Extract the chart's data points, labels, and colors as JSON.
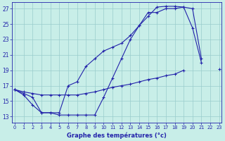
{
  "bg_color": "#c8eee8",
  "grid_color": "#99cccc",
  "line_color": "#2222aa",
  "xlabel": "Graphe des températures (°c)",
  "hours": [
    0,
    1,
    2,
    3,
    4,
    5,
    6,
    7,
    8,
    9,
    10,
    11,
    12,
    13,
    14,
    15,
    16,
    17,
    18,
    19,
    20,
    21,
    22,
    23
  ],
  "curve_A": [
    16.5,
    15.8,
    14.5,
    13.5,
    13.5,
    13.2,
    13.2,
    13.2,
    13.2,
    13.2,
    15.5,
    18.0,
    20.5,
    23.0,
    24.8,
    26.0,
    27.2,
    27.3,
    27.3,
    27.2,
    24.5,
    20.0,
    null,
    null
  ],
  "curve_B": [
    16.5,
    16.0,
    15.5,
    13.5,
    13.5,
    13.5,
    17.0,
    17.5,
    19.5,
    20.5,
    21.5,
    22.0,
    22.5,
    23.5,
    24.8,
    26.5,
    26.5,
    27.0,
    27.0,
    27.2,
    27.0,
    20.5,
    null,
    null
  ],
  "curve_C": [
    16.5,
    16.2,
    16.0,
    15.8,
    15.8,
    15.8,
    15.8,
    15.8,
    16.0,
    16.2,
    16.5,
    16.8,
    17.0,
    17.2,
    17.5,
    17.8,
    18.0,
    18.3,
    18.5,
    19.0,
    null,
    null,
    null,
    19.2
  ],
  "yticks": [
    13,
    15,
    17,
    19,
    21,
    23,
    25,
    27
  ],
  "xticks": [
    0,
    1,
    2,
    3,
    4,
    5,
    6,
    7,
    8,
    9,
    10,
    11,
    12,
    13,
    14,
    15,
    16,
    17,
    18,
    19,
    20,
    21,
    22,
    23
  ],
  "ylim_min": 12.2,
  "ylim_max": 27.8,
  "xlim_min": -0.3,
  "xlim_max": 23.3
}
